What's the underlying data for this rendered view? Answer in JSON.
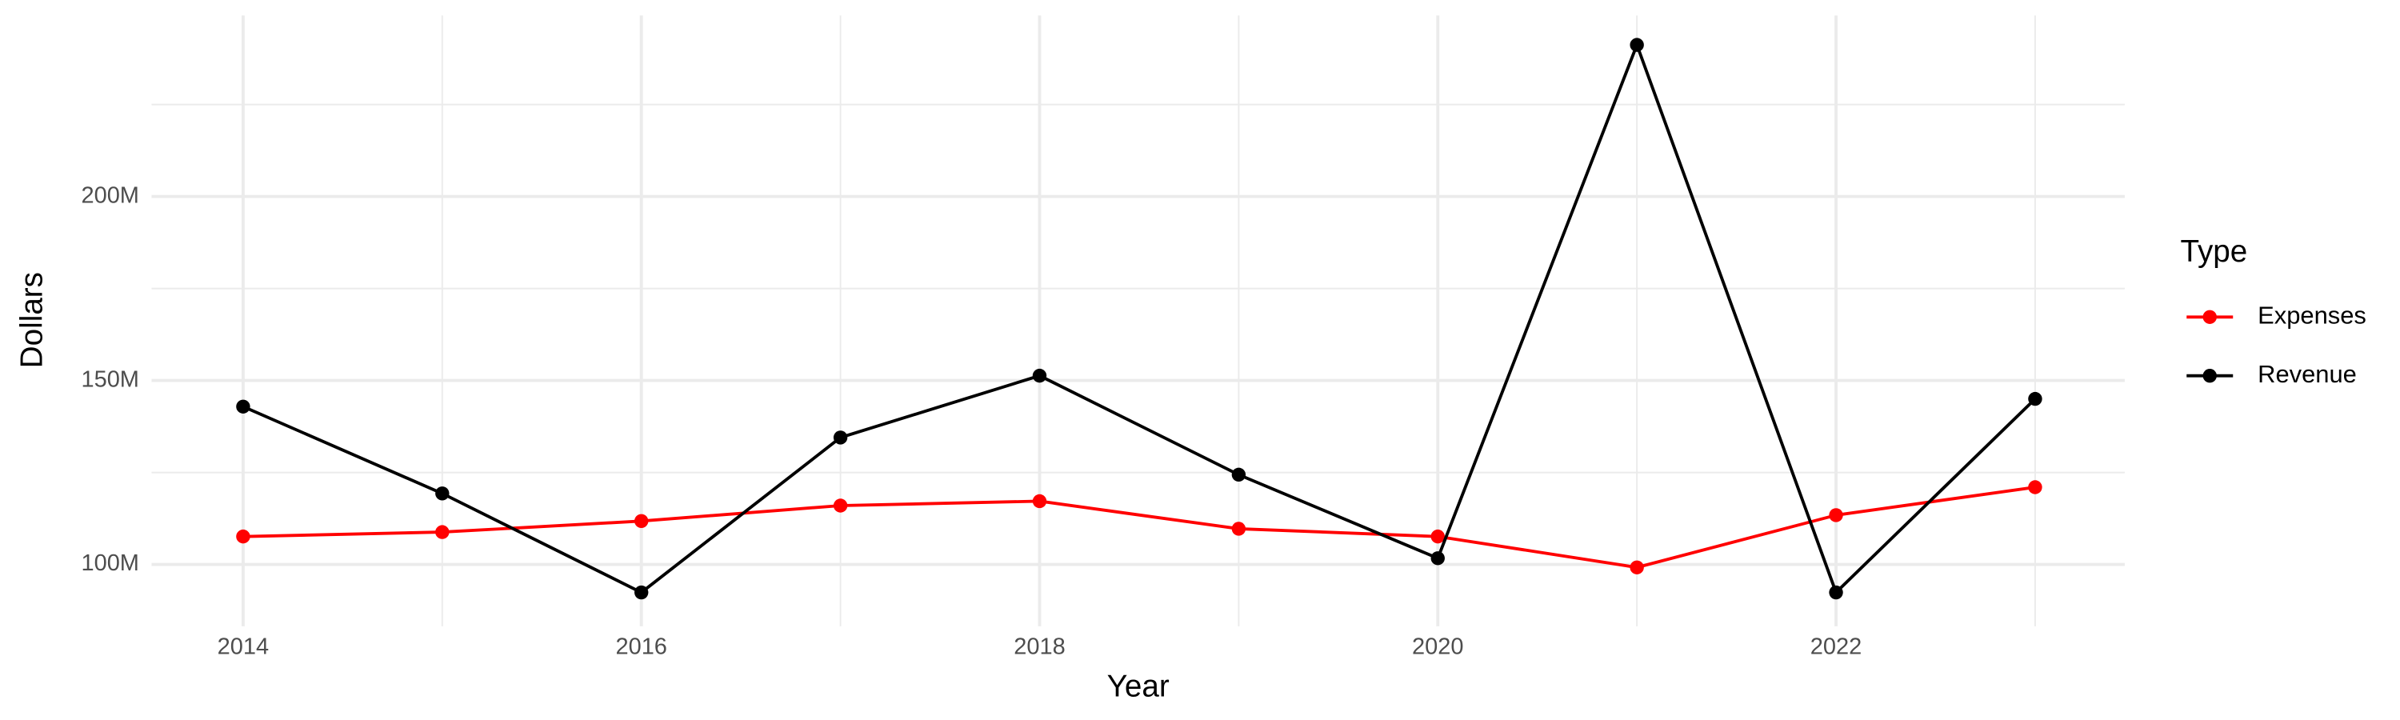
{
  "chart_data": {
    "type": "line",
    "x_label": "Year",
    "y_label": "Dollars",
    "legend_title": "Type",
    "legend": "right",
    "grid": true,
    "x": [
      2014,
      2015,
      2016,
      2017,
      2018,
      2019,
      2020,
      2021,
      2022,
      2023
    ],
    "series": [
      {
        "name": "Expenses",
        "color": "#ff0000",
        "values": [
          107600000,
          108800000,
          111800000,
          116000000,
          117200000,
          109700000,
          107600000,
          99200000,
          113400000,
          121000000
        ]
      },
      {
        "name": "Revenue",
        "color": "#000000",
        "values": [
          142900000,
          119300000,
          92400000,
          134500000,
          151300000,
          124400000,
          101700000,
          241200000,
          92400000,
          145000000
        ]
      }
    ],
    "xlim": [
      2013.54,
      2023.45
    ],
    "xticks": [
      2014,
      2016,
      2018,
      2020,
      2022
    ],
    "ylim": [
      83200000,
      249200000
    ],
    "yticks": [
      {
        "value": 100000000,
        "label": "100M"
      },
      {
        "value": 150000000,
        "label": "150M"
      },
      {
        "value": 200000000,
        "label": "200M"
      }
    ]
  }
}
